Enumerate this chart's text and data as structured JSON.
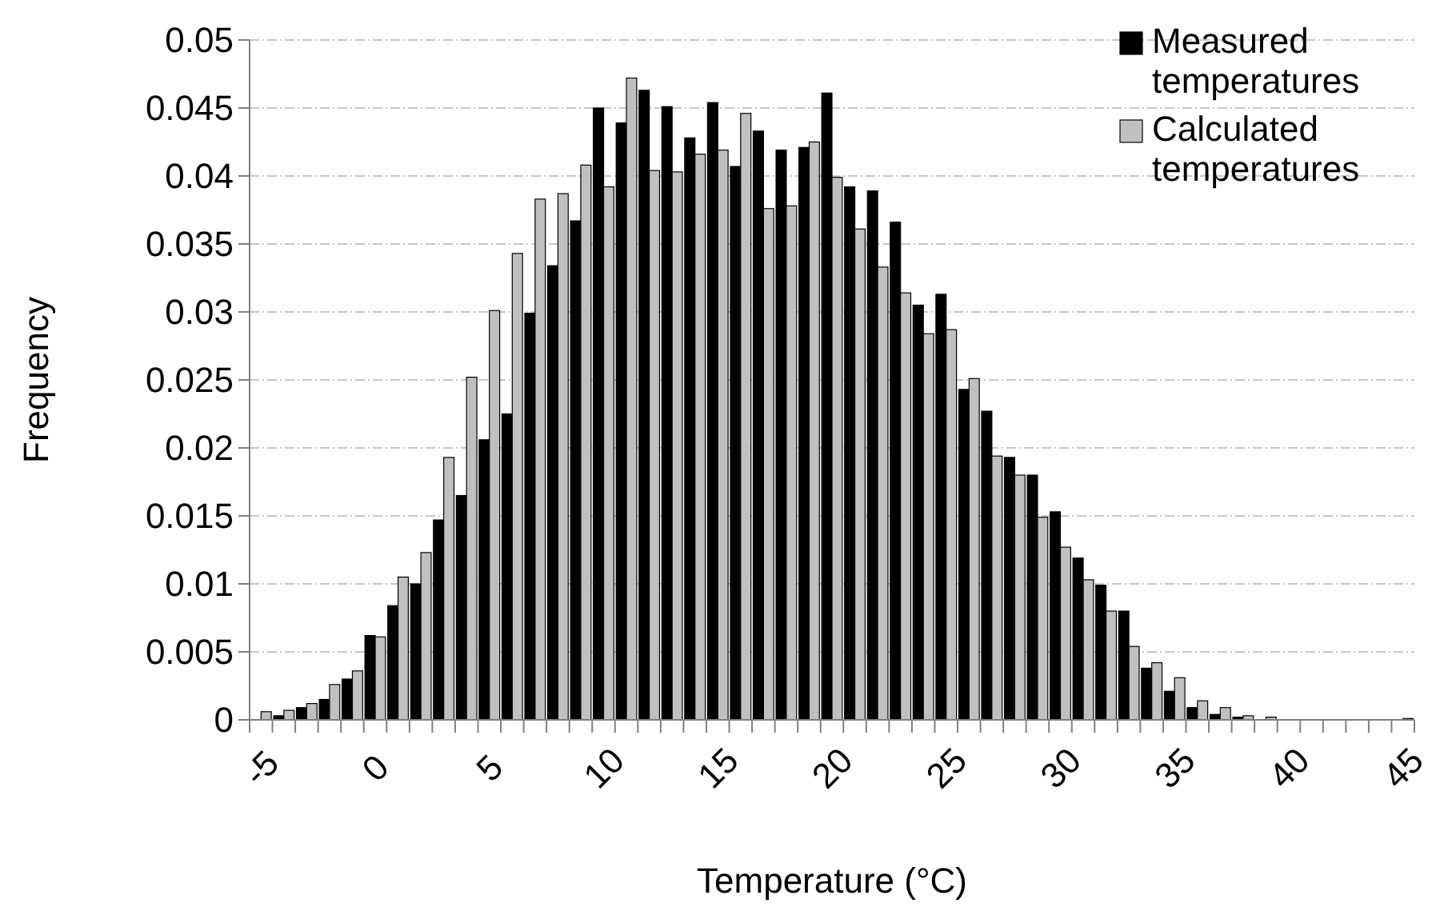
{
  "chart_data": {
    "type": "bar",
    "xlabel": "Temperature (°C)",
    "ylabel": "Frequency",
    "categories": [
      "-5",
      null,
      null,
      null,
      null,
      "0",
      null,
      null,
      null,
      null,
      "5",
      null,
      null,
      null,
      null,
      "10",
      null,
      null,
      null,
      null,
      "15",
      null,
      null,
      null,
      null,
      "20",
      null,
      null,
      null,
      null,
      "25",
      null,
      null,
      null,
      null,
      "30",
      null,
      null,
      null,
      null,
      "35",
      null,
      null,
      null,
      null,
      "40",
      null,
      null,
      null,
      null,
      "45"
    ],
    "series": [
      {
        "name": "Measured temperatures",
        "color": "#000000",
        "values": [
          0,
          0.0003,
          0.0009,
          0.0015,
          0.003,
          0.0062,
          0.0084,
          0.01,
          0.0147,
          0.0165,
          0.0206,
          0.0225,
          0.0299,
          0.0334,
          0.0367,
          0.045,
          0.0439,
          0.0463,
          0.0451,
          0.0428,
          0.0454,
          0.0407,
          0.0433,
          0.0419,
          0.0421,
          0.0461,
          0.0392,
          0.0389,
          0.0366,
          0.0305,
          0.0313,
          0.0243,
          0.0227,
          0.0193,
          0.018,
          0.0153,
          0.0119,
          0.0099,
          0.008,
          0.0038,
          0.0021,
          0.0009,
          0.0004,
          0.0002,
          null,
          null,
          0,
          0,
          0,
          0,
          0
        ]
      },
      {
        "name": "Calculated temperatures",
        "color": "#c0c0c0",
        "values": [
          0.0006,
          0.0007,
          0.0012,
          0.0026,
          0.0036,
          0.0061,
          0.0105,
          0.0123,
          0.0193,
          0.0252,
          0.0301,
          0.0343,
          0.0383,
          0.0387,
          0.0408,
          0.0392,
          0.0472,
          0.0404,
          0.0403,
          0.0416,
          0.0419,
          0.0446,
          0.0376,
          0.0378,
          0.0425,
          0.0399,
          0.0361,
          0.0333,
          0.0314,
          0.0284,
          0.0287,
          0.0251,
          0.0194,
          0.018,
          0.0149,
          0.0127,
          0.0103,
          0.008,
          0.0054,
          0.0042,
          0.0031,
          0.0014,
          0.0009,
          0.0003,
          0.0002,
          null,
          0,
          0,
          0,
          0,
          0.0001
        ]
      }
    ],
    "ylim": [
      0,
      0.05
    ],
    "yticks": [
      0,
      0.005,
      0.01,
      0.015,
      0.02,
      0.025,
      0.03,
      0.035,
      0.04,
      0.045,
      0.05
    ],
    "grid": "y",
    "legend": "top right"
  }
}
